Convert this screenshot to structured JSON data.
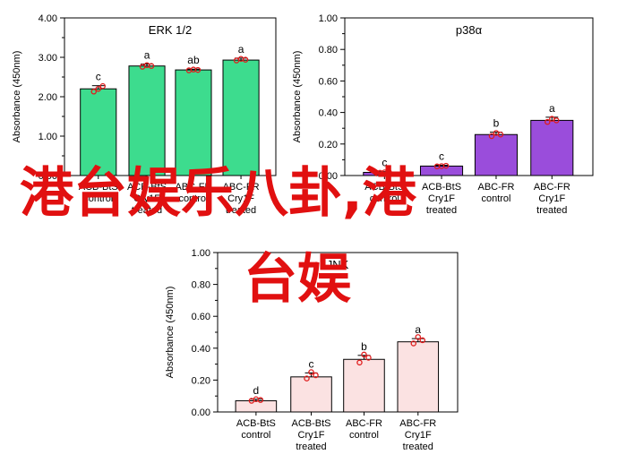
{
  "chart_data": [
    {
      "type": "bar",
      "title": "ERK 1/2",
      "ylabel": "Absorbance (450nm)",
      "ylim": [
        0,
        4
      ],
      "yticks": [
        "0.00",
        "1.00",
        "2.00",
        "3.00",
        "4.00"
      ],
      "categories": [
        [
          "ACB-BtS",
          "control"
        ],
        [
          "ACB-BtS",
          "Cry1F",
          "treated"
        ],
        [
          "ABC-FR",
          "control"
        ],
        [
          "ABC-FR",
          "Cry1F",
          "treated"
        ]
      ],
      "values": [
        2.2,
        2.78,
        2.68,
        2.93
      ],
      "errors": [
        0.08,
        0.05,
        0.02,
        0.05
      ],
      "letters": [
        "c",
        "a",
        "ab",
        "a"
      ],
      "points": [
        [
          2.13,
          2.2,
          2.27
        ],
        [
          2.76,
          2.8,
          2.78
        ],
        [
          2.67,
          2.69,
          2.68
        ],
        [
          2.92,
          2.96,
          2.94
        ]
      ],
      "bar_color": "#3ddc8e",
      "grid": false
    },
    {
      "type": "bar",
      "title": "p38α",
      "ylabel": "Absorbance (450nm)",
      "ylim": [
        0,
        1
      ],
      "yticks": [
        "0.00",
        "0.20",
        "0.40",
        "0.60",
        "0.80",
        "1.00"
      ],
      "categories": [
        [
          "ACB-BtS",
          "control"
        ],
        [
          "ACB-BtS",
          "Cry1F",
          "treated"
        ],
        [
          "ABC-FR",
          "control"
        ],
        [
          "ABC-FR",
          "Cry1F",
          "treated"
        ]
      ],
      "values": [
        0.02,
        0.06,
        0.26,
        0.35
      ],
      "errors": [
        0.005,
        0.005,
        0.015,
        0.02
      ],
      "letters": [
        "c",
        "c",
        "b",
        "a"
      ],
      "points": [
        [
          0.018,
          0.02,
          0.022
        ],
        [
          0.058,
          0.06,
          0.062
        ],
        [
          0.25,
          0.27,
          0.26
        ],
        [
          0.34,
          0.36,
          0.35
        ]
      ],
      "bar_color": "#9a4ddb",
      "grid": false
    },
    {
      "type": "bar",
      "title": "JNK",
      "ylabel": "Absorbance (450nm)",
      "ylim": [
        0,
        1
      ],
      "yticks": [
        "0.00",
        "0.20",
        "0.40",
        "0.60",
        "0.80",
        "1.00"
      ],
      "categories": [
        [
          "ACB-BtS",
          "control"
        ],
        [
          "ACB-BtS",
          "Cry1F",
          "treated"
        ],
        [
          "ABC-FR",
          "control"
        ],
        [
          "ABC-FR",
          "Cry1F",
          "treated"
        ]
      ],
      "values": [
        0.07,
        0.22,
        0.33,
        0.44
      ],
      "errors": [
        0.01,
        0.025,
        0.025,
        0.02
      ],
      "letters": [
        "d",
        "c",
        "b",
        "a"
      ],
      "points": [
        [
          0.07,
          0.08,
          0.075
        ],
        [
          0.21,
          0.25,
          0.23
        ],
        [
          0.31,
          0.36,
          0.34
        ],
        [
          0.43,
          0.47,
          0.45
        ]
      ],
      "bar_color": "#fbe2e2",
      "grid": false
    }
  ],
  "overlay": {
    "line1": "港台娱乐八卦,港",
    "line2": "台娱"
  }
}
